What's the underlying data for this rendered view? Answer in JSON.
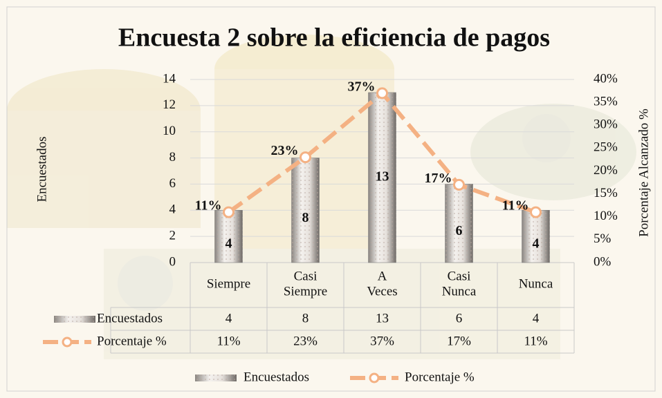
{
  "chart_data": {
    "type": "bar_line",
    "title": "Encuesta 2 sobre la eficiencia de pagos",
    "y_label": "Encuestados",
    "y2_label": "Porcentaje Alcanzado %",
    "categories": [
      "Siempre",
      "Casi Siempre",
      "A Veces",
      "Casi Nunca",
      "Nunca"
    ],
    "series": [
      {
        "name": "Encuestados",
        "type": "bar",
        "color": "#d9d4cf",
        "values": [
          4,
          8,
          13,
          6,
          4
        ]
      },
      {
        "name": "Porcentaje %",
        "type": "line",
        "axis": "y2",
        "color": "#f4b183",
        "values": [
          11,
          23,
          37,
          17,
          11
        ],
        "value_labels": [
          "11%",
          "23%",
          "37%",
          "17%",
          "11%"
        ]
      }
    ],
    "ylim": [
      0,
      14
    ],
    "yticks": [
      0,
      2,
      4,
      6,
      8,
      10,
      12,
      14
    ],
    "y2lim": [
      0,
      40
    ],
    "y2ticks": [
      {
        "value": 0,
        "label": "0%"
      },
      {
        "value": 5,
        "label": "5%"
      },
      {
        "value": 10,
        "label": "10%"
      },
      {
        "value": 15,
        "label": "15%"
      },
      {
        "value": 20,
        "label": "20%"
      },
      {
        "value": 25,
        "label": "25%"
      },
      {
        "value": 30,
        "label": "30%"
      },
      {
        "value": 35,
        "label": "35%"
      },
      {
        "value": 40,
        "label": "40%"
      }
    ],
    "grid": true,
    "legend": "bottom"
  }
}
